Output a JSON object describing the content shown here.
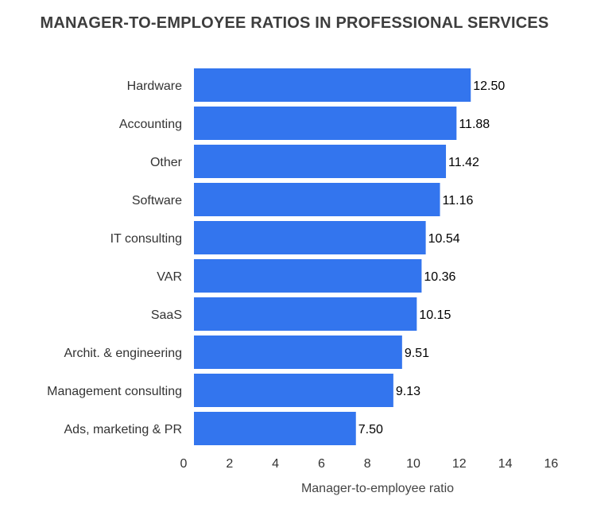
{
  "chart_data": {
    "type": "bar",
    "orientation": "horizontal",
    "title": "MANAGER-TO-EMPLOYEE RATIOS IN PROFESSIONAL SERVICES",
    "xlabel": "Manager-to-employee ratio",
    "ylabel": "",
    "categories": [
      "Hardware",
      "Accounting",
      "Other",
      "Software",
      "IT consulting",
      "VAR",
      "SaaS",
      "Archit. & engineering",
      "Management consulting",
      "Ads, marketing & PR"
    ],
    "values": [
      12.5,
      11.88,
      11.42,
      11.16,
      10.54,
      10.36,
      10.15,
      9.51,
      9.13,
      7.5
    ],
    "value_labels": [
      "12.50",
      "11.88",
      "11.42",
      "11.16",
      "10.54",
      "10.36",
      "10.15",
      "9.51",
      "9.13",
      "7.50"
    ],
    "xlim": [
      0,
      16
    ],
    "xticks": [
      "0",
      "2",
      "4",
      "6",
      "8",
      "10",
      "12",
      "14",
      "16"
    ],
    "grid": false,
    "bar_color": "#3375ee"
  }
}
